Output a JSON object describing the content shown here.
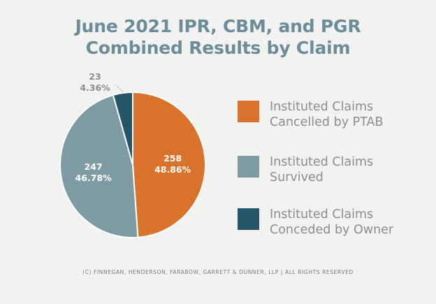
{
  "title": {
    "line1": "June 2021 IPR, CBM, and PGR",
    "line2": "Combined Results by Claim"
  },
  "chart_data": {
    "type": "pie",
    "title": "June 2021 IPR, CBM, and PGR Combined Results by Claim",
    "legend_placement": "right",
    "slices": [
      {
        "name": "Instituted Claims Cancelled by PTAB",
        "value": 258,
        "percent": "48.86%",
        "color": "#d9722a"
      },
      {
        "name": "Instituted Claims Survived",
        "value": 247,
        "percent": "46.78%",
        "color": "#7e9ba4"
      },
      {
        "name": "Instituted Claims Conceded by Owner",
        "value": 23,
        "percent": "4.36%",
        "color": "#24566a"
      }
    ]
  },
  "legend": [
    {
      "line1": "Instituted Claims",
      "line2": "Cancelled by PTAB",
      "color": "#d9722a"
    },
    {
      "line1": "Instituted Claims",
      "line2": "Survived",
      "color": "#7e9ba4"
    },
    {
      "line1": "Instituted Claims",
      "line2": "Conceded by Owner",
      "color": "#24566a"
    }
  ],
  "footer": "(C) FINNEGAN, HENDERSON, FARABOW, GARRETT & DUNNER, LLP | ALL RIGHTS RESERVED",
  "colors": {
    "background": "#f2f2f1",
    "title": "#6b8c98",
    "legend_text": "#8d8d8d",
    "label_inside": "#ffffff",
    "label_outside": "#8d8d8d"
  }
}
